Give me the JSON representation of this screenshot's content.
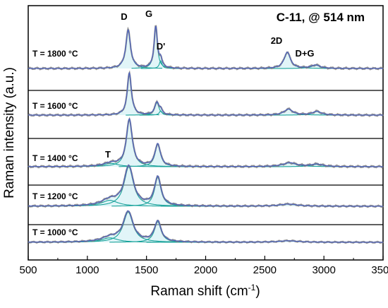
{
  "chart_data": {
    "type": "line",
    "title": "C-11, @ 514 nm",
    "xlabel": "Raman shift (cm",
    "xlabel_sup": "-1",
    "xlabel_tail": ")",
    "ylabel": "Raman intensity (a.u.)",
    "xlim": [
      500,
      3500
    ],
    "xticks": [
      500,
      1000,
      1500,
      2000,
      2500,
      3000,
      3500
    ],
    "xtick_labels": [
      "500",
      "1000",
      "1500",
      "2000",
      "2500",
      "3000",
      "3500"
    ],
    "grid": false,
    "legend": "none",
    "colors": {
      "data": "#7d7d7d",
      "fit": "#4a5fc4",
      "component": "#1aa39b",
      "fill": "#c9ecf2",
      "frame": "#000000"
    },
    "peak_labels": [
      {
        "text": "D",
        "x": 1350
      },
      {
        "text": "G",
        "x": 1580
      },
      {
        "text": "D'",
        "x": 1620
      },
      {
        "text": "2D",
        "x": 2690
      },
      {
        "text": "D+G",
        "x": 2930
      },
      {
        "text": "T",
        "x": 1200
      }
    ],
    "series": [
      {
        "name": "T = 1800 °C",
        "peaks": [
          {
            "label": "D",
            "center": 1345,
            "fwhm": 48,
            "height": 0.8
          },
          {
            "label": "G",
            "center": 1578,
            "fwhm": 34,
            "height": 0.86
          },
          {
            "label": "D'",
            "center": 1620,
            "fwhm": 28,
            "height": 0.16
          },
          {
            "label": "2D",
            "center": 2690,
            "fwhm": 64,
            "height": 0.34
          },
          {
            "label": "D+G",
            "center": 2930,
            "fwhm": 90,
            "height": 0.07
          }
        ]
      },
      {
        "name": "T = 1600 °C",
        "peaks": [
          {
            "label": "D",
            "center": 1355,
            "fwhm": 42,
            "height": 0.92
          },
          {
            "label": "G",
            "center": 1588,
            "fwhm": 44,
            "height": 0.27
          },
          {
            "label": "D'",
            "center": 1620,
            "fwhm": 30,
            "height": 0.09
          },
          {
            "label": "2D",
            "center": 2700,
            "fwhm": 90,
            "height": 0.13
          },
          {
            "label": "D+G",
            "center": 2940,
            "fwhm": 90,
            "height": 0.08
          }
        ]
      },
      {
        "name": "T = 1400 °C",
        "peaks": [
          {
            "label": "T",
            "center": 1200,
            "fwhm": 150,
            "height": 0.07
          },
          {
            "label": "D",
            "center": 1355,
            "fwhm": 60,
            "height": 0.98
          },
          {
            "label": "G",
            "center": 1595,
            "fwhm": 55,
            "height": 0.47
          },
          {
            "label": "2D",
            "center": 2710,
            "fwhm": 140,
            "height": 0.08
          },
          {
            "label": "D+G",
            "center": 2940,
            "fwhm": 120,
            "height": 0.05
          }
        ]
      },
      {
        "name": "T = 1200 °C",
        "peaks": [
          {
            "label": "T",
            "center": 1190,
            "fwhm": 170,
            "height": 0.14
          },
          {
            "label": "D",
            "center": 1350,
            "fwhm": 95,
            "height": 0.93
          },
          {
            "label": "G",
            "center": 1595,
            "fwhm": 65,
            "height": 0.68
          },
          {
            "label": "2D",
            "center": 2700,
            "fwhm": 180,
            "height": 0.05
          }
        ]
      },
      {
        "name": "T = 1000 °C",
        "peaks": [
          {
            "label": "T",
            "center": 1190,
            "fwhm": 170,
            "height": 0.12
          },
          {
            "label": "D",
            "center": 1345,
            "fwhm": 100,
            "height": 0.82
          },
          {
            "label": "G",
            "center": 1595,
            "fwhm": 68,
            "height": 0.56
          },
          {
            "label": "2D",
            "center": 2700,
            "fwhm": 200,
            "height": 0.04
          }
        ]
      }
    ]
  }
}
